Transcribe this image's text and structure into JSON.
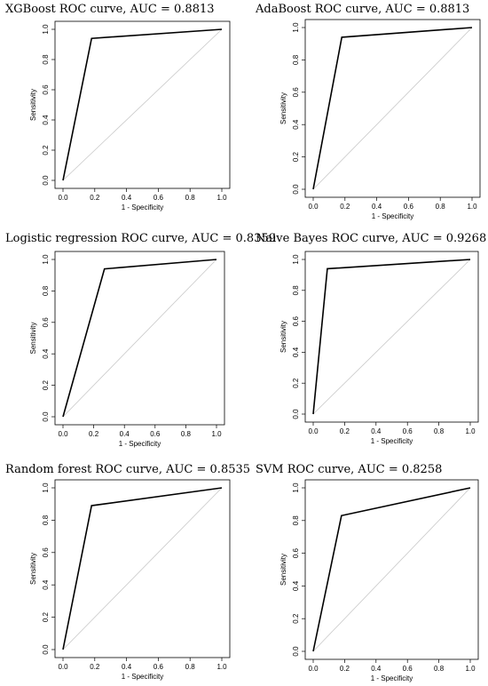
{
  "chart_data": [
    {
      "type": "line",
      "title": "XGBoost ROC curve, AUC = 0.8813",
      "xlabel": "1 - Specificity",
      "ylabel": "Sensitivity",
      "xlim": [
        0,
        1
      ],
      "ylim": [
        0,
        1
      ],
      "xticks": [
        "0.0",
        "0.2",
        "0.4",
        "0.6",
        "0.8",
        "1.0"
      ],
      "yticks": [
        "0.0",
        "0.2",
        "0.4",
        "0.6",
        "0.8",
        "1.0"
      ],
      "series": [
        {
          "x": [
            0,
            0.18,
            1
          ],
          "y": [
            0,
            0.94,
            1
          ]
        }
      ],
      "diagonal": true
    },
    {
      "type": "line",
      "title": "AdaBoost ROC curve, AUC = 0.8813",
      "xlabel": "1 - Specificity",
      "ylabel": "Sensitivity",
      "xlim": [
        0,
        1
      ],
      "ylim": [
        0,
        1
      ],
      "xticks": [
        "0.0",
        "0.2",
        "0.4",
        "0.6",
        "0.8",
        "1.0"
      ],
      "yticks": [
        "0.0",
        "0.2",
        "0.4",
        "0.6",
        "0.8",
        "1.0"
      ],
      "series": [
        {
          "x": [
            0,
            0.18,
            1
          ],
          "y": [
            0,
            0.94,
            1
          ]
        }
      ],
      "diagonal": true
    },
    {
      "type": "line",
      "title": "Logistic regression ROC curve, AUC = 0.8359",
      "xlabel": "1 - Specificity",
      "ylabel": "Sensitivity",
      "xlim": [
        0,
        1
      ],
      "ylim": [
        0,
        1
      ],
      "xticks": [
        "0.0",
        "0.2",
        "0.4",
        "0.6",
        "0.8",
        "1.0"
      ],
      "yticks": [
        "0.0",
        "0.2",
        "0.4",
        "0.6",
        "0.8",
        "1.0"
      ],
      "series": [
        {
          "x": [
            0,
            0.27,
            1
          ],
          "y": [
            0,
            0.94,
            1
          ]
        }
      ],
      "diagonal": true
    },
    {
      "type": "line",
      "title": "Naive Bayes ROC curve, AUC = 0.9268",
      "xlabel": "1 - Specificity",
      "ylabel": "Sensitivity",
      "xlim": [
        0,
        1
      ],
      "ylim": [
        0,
        1
      ],
      "xticks": [
        "0.0",
        "0.2",
        "0.4",
        "0.6",
        "0.8",
        "1.0"
      ],
      "yticks": [
        "0.0",
        "0.2",
        "0.4",
        "0.6",
        "0.8",
        "1.0"
      ],
      "series": [
        {
          "x": [
            0,
            0.09,
            1
          ],
          "y": [
            0,
            0.94,
            1
          ]
        }
      ],
      "diagonal": true
    },
    {
      "type": "line",
      "title": "Random forest ROC curve, AUC = 0.8535",
      "xlabel": "1 - Specificity",
      "ylabel": "Sensitivity",
      "xlim": [
        0,
        1
      ],
      "ylim": [
        0,
        1
      ],
      "xticks": [
        "0.0",
        "0.2",
        "0.4",
        "0.6",
        "0.8",
        "1.0"
      ],
      "yticks": [
        "0.0",
        "0.2",
        "0.4",
        "0.6",
        "0.8",
        "1.0"
      ],
      "series": [
        {
          "x": [
            0,
            0.18,
            1
          ],
          "y": [
            0,
            0.89,
            1
          ]
        }
      ],
      "diagonal": true
    },
    {
      "type": "line",
      "title": "SVM ROC curve, AUC = 0.8258",
      "xlabel": "1 - Specificity",
      "ylabel": "Sensitivity",
      "xlim": [
        0,
        1
      ],
      "ylim": [
        0,
        1
      ],
      "xticks": [
        "0.0",
        "0.2",
        "0.4",
        "0.6",
        "0.8",
        "1.0"
      ],
      "yticks": [
        "0.0",
        "0.2",
        "0.4",
        "0.6",
        "0.8",
        "1.0"
      ],
      "series": [
        {
          "x": [
            0,
            0.18,
            1
          ],
          "y": [
            0,
            0.83,
            1
          ]
        }
      ],
      "diagonal": true
    }
  ]
}
